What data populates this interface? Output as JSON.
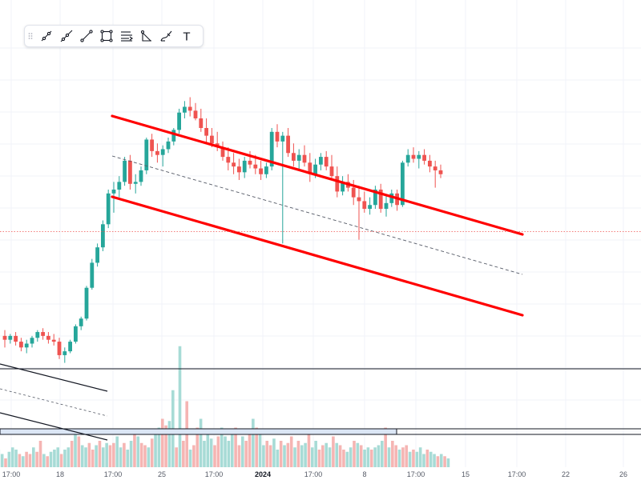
{
  "toolbar": {
    "items": [
      {
        "name": "trend-line-icon"
      },
      {
        "name": "ray-icon"
      },
      {
        "name": "extended-line-icon"
      },
      {
        "name": "rectangle-icon"
      },
      {
        "name": "parallel-channel-icon"
      },
      {
        "name": "pitchfork-icon"
      },
      {
        "name": "brush-icon"
      },
      {
        "name": "text-icon",
        "label": "T"
      }
    ]
  },
  "colors": {
    "up": "#26a69a",
    "down": "#ef5350",
    "up_volume": "#a7dbd6",
    "down_volume": "#f5b5b3",
    "channel": "#ff0000",
    "grid": "#f0f3fa"
  },
  "chart_data": {
    "type": "candlestick",
    "x_ticks": [
      "17:00",
      "18",
      "17:00",
      "25",
      "17:00",
      "2024",
      "17:00",
      "8",
      "17:00",
      "15",
      "17:00",
      "22",
      "26"
    ],
    "volume": {
      "type": "bar",
      "values_relative": [
        8,
        6,
        4,
        7,
        9,
        8,
        6,
        5,
        7,
        6,
        9,
        7,
        12,
        6,
        5,
        7,
        8,
        9,
        6,
        8,
        9,
        12,
        16,
        14,
        10,
        9,
        11,
        8,
        10,
        12,
        9,
        11,
        10,
        11,
        14,
        9,
        11,
        8,
        12,
        15,
        14,
        11,
        10,
        9,
        13,
        16,
        18,
        22,
        19,
        21,
        35,
        9,
        55,
        12,
        30,
        8,
        10,
        18,
        22,
        12,
        15,
        13,
        10,
        14,
        18,
        14,
        12,
        15,
        18,
        10,
        14,
        12,
        16,
        22,
        18,
        15,
        10,
        12,
        10,
        13,
        8,
        12,
        10,
        11,
        14,
        9,
        12,
        10,
        11,
        15,
        9,
        12,
        8,
        10,
        11,
        9,
        14,
        11,
        10,
        8,
        7,
        9,
        12,
        11,
        10,
        8,
        9,
        8,
        9,
        10,
        12,
        18,
        9,
        12,
        10,
        8,
        9,
        10,
        7,
        8,
        7,
        9,
        6,
        8,
        7,
        6,
        5,
        6,
        5,
        4
      ]
    },
    "drawings": [
      {
        "type": "parallel-channel",
        "color": "#ff0000",
        "line": "upper"
      },
      {
        "type": "parallel-channel",
        "color": "#ff0000",
        "line": "lower"
      },
      {
        "type": "parallel-channel",
        "color": "#555a66",
        "line": "median",
        "style": "dashed"
      },
      {
        "type": "parallel-channel",
        "color": "#131722",
        "line": "upper"
      },
      {
        "type": "parallel-channel",
        "color": "#131722",
        "line": "lower"
      },
      {
        "type": "parallel-channel",
        "color": "#131722",
        "line": "median",
        "style": "dashed"
      },
      {
        "type": "horizontal-line",
        "color": "#131722"
      },
      {
        "type": "rectangle",
        "color": "#131722",
        "fill": "#dbe6f5"
      }
    ],
    "candles": [
      {
        "o": 52,
        "h": 55,
        "l": 46,
        "c": 50
      },
      {
        "o": 50,
        "h": 53,
        "l": 48,
        "c": 52
      },
      {
        "o": 52,
        "h": 54,
        "l": 47,
        "c": 49
      },
      {
        "o": 49,
        "h": 51,
        "l": 44,
        "c": 46
      },
      {
        "o": 46,
        "h": 50,
        "l": 43,
        "c": 48
      },
      {
        "o": 48,
        "h": 52,
        "l": 46,
        "c": 51
      },
      {
        "o": 51,
        "h": 55,
        "l": 49,
        "c": 54
      },
      {
        "o": 54,
        "h": 56,
        "l": 50,
        "c": 52
      },
      {
        "o": 52,
        "h": 54,
        "l": 48,
        "c": 50
      },
      {
        "o": 50,
        "h": 53,
        "l": 47,
        "c": 49
      },
      {
        "o": 49,
        "h": 51,
        "l": 40,
        "c": 42
      },
      {
        "o": 42,
        "h": 46,
        "l": 38,
        "c": 44
      },
      {
        "o": 44,
        "h": 50,
        "l": 43,
        "c": 49
      },
      {
        "o": 49,
        "h": 58,
        "l": 48,
        "c": 57
      },
      {
        "o": 57,
        "h": 62,
        "l": 55,
        "c": 61
      },
      {
        "o": 61,
        "h": 78,
        "l": 60,
        "c": 77
      },
      {
        "o": 77,
        "h": 92,
        "l": 76,
        "c": 90
      },
      {
        "o": 90,
        "h": 100,
        "l": 88,
        "c": 98
      },
      {
        "o": 98,
        "h": 112,
        "l": 96,
        "c": 110
      },
      {
        "o": 110,
        "h": 128,
        "l": 108,
        "c": 126
      },
      {
        "o": 126,
        "h": 132,
        "l": 116,
        "c": 128
      },
      {
        "o": 128,
        "h": 135,
        "l": 124,
        "c": 132
      },
      {
        "o": 132,
        "h": 145,
        "l": 130,
        "c": 143
      },
      {
        "o": 143,
        "h": 146,
        "l": 128,
        "c": 131
      },
      {
        "o": 131,
        "h": 136,
        "l": 126,
        "c": 132
      },
      {
        "o": 132,
        "h": 140,
        "l": 130,
        "c": 138
      },
      {
        "o": 138,
        "h": 155,
        "l": 136,
        "c": 154
      },
      {
        "o": 154,
        "h": 157,
        "l": 145,
        "c": 148
      },
      {
        "o": 148,
        "h": 152,
        "l": 142,
        "c": 146
      },
      {
        "o": 146,
        "h": 151,
        "l": 140,
        "c": 149
      },
      {
        "o": 149,
        "h": 155,
        "l": 147,
        "c": 153
      },
      {
        "o": 153,
        "h": 160,
        "l": 151,
        "c": 159
      },
      {
        "o": 159,
        "h": 170,
        "l": 157,
        "c": 168
      },
      {
        "o": 168,
        "h": 174,
        "l": 165,
        "c": 171
      },
      {
        "o": 171,
        "h": 176,
        "l": 166,
        "c": 169
      },
      {
        "o": 169,
        "h": 173,
        "l": 164,
        "c": 165
      },
      {
        "o": 165,
        "h": 170,
        "l": 158,
        "c": 160
      },
      {
        "o": 160,
        "h": 165,
        "l": 152,
        "c": 156
      },
      {
        "o": 156,
        "h": 160,
        "l": 150,
        "c": 152
      },
      {
        "o": 152,
        "h": 158,
        "l": 148,
        "c": 150
      },
      {
        "o": 150,
        "h": 153,
        "l": 143,
        "c": 145
      },
      {
        "o": 145,
        "h": 150,
        "l": 138,
        "c": 142
      },
      {
        "o": 142,
        "h": 147,
        "l": 136,
        "c": 140
      },
      {
        "o": 140,
        "h": 144,
        "l": 133,
        "c": 137
      },
      {
        "o": 137,
        "h": 145,
        "l": 134,
        "c": 143
      },
      {
        "o": 143,
        "h": 148,
        "l": 139,
        "c": 141
      },
      {
        "o": 141,
        "h": 146,
        "l": 136,
        "c": 139
      },
      {
        "o": 139,
        "h": 143,
        "l": 133,
        "c": 136
      },
      {
        "o": 136,
        "h": 142,
        "l": 134,
        "c": 140
      },
      {
        "o": 140,
        "h": 160,
        "l": 138,
        "c": 158
      },
      {
        "o": 158,
        "h": 162,
        "l": 150,
        "c": 153
      },
      {
        "o": 153,
        "h": 158,
        "l": 100,
        "c": 156
      },
      {
        "o": 156,
        "h": 160,
        "l": 145,
        "c": 147
      },
      {
        "o": 147,
        "h": 152,
        "l": 140,
        "c": 143
      },
      {
        "o": 143,
        "h": 149,
        "l": 138,
        "c": 146
      },
      {
        "o": 146,
        "h": 151,
        "l": 140,
        "c": 142
      },
      {
        "o": 142,
        "h": 147,
        "l": 132,
        "c": 136
      },
      {
        "o": 136,
        "h": 144,
        "l": 134,
        "c": 141
      },
      {
        "o": 141,
        "h": 147,
        "l": 138,
        "c": 145
      },
      {
        "o": 145,
        "h": 148,
        "l": 138,
        "c": 140
      },
      {
        "o": 140,
        "h": 146,
        "l": 133,
        "c": 135
      },
      {
        "o": 135,
        "h": 140,
        "l": 124,
        "c": 127
      },
      {
        "o": 127,
        "h": 135,
        "l": 125,
        "c": 132
      },
      {
        "o": 132,
        "h": 136,
        "l": 127,
        "c": 129
      },
      {
        "o": 129,
        "h": 133,
        "l": 120,
        "c": 124
      },
      {
        "o": 124,
        "h": 130,
        "l": 102,
        "c": 122
      },
      {
        "o": 122,
        "h": 127,
        "l": 116,
        "c": 118
      },
      {
        "o": 118,
        "h": 124,
        "l": 115,
        "c": 120
      },
      {
        "o": 120,
        "h": 130,
        "l": 118,
        "c": 128
      },
      {
        "o": 128,
        "h": 131,
        "l": 116,
        "c": 118
      },
      {
        "o": 118,
        "h": 125,
        "l": 114,
        "c": 121
      },
      {
        "o": 121,
        "h": 128,
        "l": 119,
        "c": 126
      },
      {
        "o": 126,
        "h": 128,
        "l": 117,
        "c": 120
      },
      {
        "o": 120,
        "h": 143,
        "l": 119,
        "c": 142
      },
      {
        "o": 142,
        "h": 149,
        "l": 140,
        "c": 146
      },
      {
        "o": 146,
        "h": 150,
        "l": 142,
        "c": 144
      },
      {
        "o": 144,
        "h": 148,
        "l": 139,
        "c": 146
      },
      {
        "o": 146,
        "h": 149,
        "l": 141,
        "c": 143
      },
      {
        "o": 143,
        "h": 146,
        "l": 137,
        "c": 140
      },
      {
        "o": 140,
        "h": 143,
        "l": 129,
        "c": 138
      },
      {
        "o": 138,
        "h": 141,
        "l": 134,
        "c": 136
      }
    ]
  }
}
